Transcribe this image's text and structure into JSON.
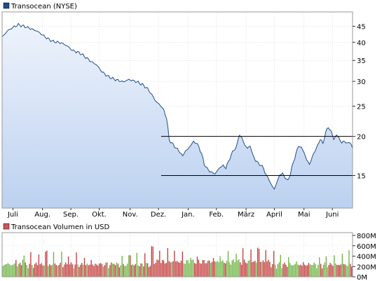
{
  "chart_data": [
    {
      "type": "area",
      "legend": "Transocean (NYSE)",
      "colors": {
        "line": "#1f4e8c",
        "fill_top": "#e6eefb",
        "fill_bottom": "#c2d5f2",
        "legend_box": "#1f4e8c"
      },
      "scale": "log",
      "ylim": [
        11.8,
        50
      ],
      "y_ticks": [
        15,
        20,
        25,
        30,
        35,
        40,
        45
      ],
      "y_tick_labels": [
        "15",
        "20",
        "25",
        "30",
        "35",
        "40",
        "45"
      ],
      "x_tick_labels": [
        "Juli",
        "Aug.",
        "Sep.",
        "Okt.",
        "Nov.",
        "Dez.",
        "Jan.",
        "Feb.",
        "März",
        "April",
        "Mai",
        "Juni"
      ],
      "x_tick_index": [
        8,
        30,
        51,
        72,
        95,
        116,
        138,
        159,
        181,
        202,
        224,
        245
      ],
      "grid": true,
      "reference_lines": [
        {
          "value": 20,
          "from_index": 118,
          "to_index": 260
        },
        {
          "value": 15,
          "from_index": 118,
          "to_index": 260
        }
      ],
      "anchors": [
        [
          0,
          41.5
        ],
        [
          4,
          43.5
        ],
        [
          8,
          44.6
        ],
        [
          12,
          45.5
        ],
        [
          16,
          45.0
        ],
        [
          20,
          44.4
        ],
        [
          26,
          43.4
        ],
        [
          30,
          42.2
        ],
        [
          34,
          41.0
        ],
        [
          38,
          40.2
        ],
        [
          44,
          39.8
        ],
        [
          48,
          39.0
        ],
        [
          52,
          37.7
        ],
        [
          58,
          36.9
        ],
        [
          62,
          35.8
        ],
        [
          66,
          34.7
        ],
        [
          70,
          33.9
        ],
        [
          74,
          32.2
        ],
        [
          78,
          31.2
        ],
        [
          82,
          30.6
        ],
        [
          86,
          30.2
        ],
        [
          90,
          29.9
        ],
        [
          94,
          30.4
        ],
        [
          100,
          29.9
        ],
        [
          104,
          29.3
        ],
        [
          108,
          28.4
        ],
        [
          112,
          26.8
        ],
        [
          114,
          25.9
        ],
        [
          118,
          25.0
        ],
        [
          120,
          24.2
        ],
        [
          122,
          22.9
        ],
        [
          124,
          19.5
        ],
        [
          126,
          19.0
        ],
        [
          128,
          18.6
        ],
        [
          132,
          17.8
        ],
        [
          134,
          17.3
        ],
        [
          136,
          18.0
        ],
        [
          138,
          18.2
        ],
        [
          140,
          18.8
        ],
        [
          142,
          19.2
        ],
        [
          144,
          19.1
        ],
        [
          146,
          18.5
        ],
        [
          148,
          17.6
        ],
        [
          150,
          16.3
        ],
        [
          152,
          15.8
        ],
        [
          154,
          15.5
        ],
        [
          156,
          15.3
        ],
        [
          158,
          15.2
        ],
        [
          160,
          15.6
        ],
        [
          162,
          16.0
        ],
        [
          164,
          16.1
        ],
        [
          166,
          15.9
        ],
        [
          168,
          16.6
        ],
        [
          170,
          17.5
        ],
        [
          172,
          18.1
        ],
        [
          174,
          18.6
        ],
        [
          176,
          20.3
        ],
        [
          178,
          19.7
        ],
        [
          180,
          18.8
        ],
        [
          182,
          18.3
        ],
        [
          184,
          18.7
        ],
        [
          186,
          17.4
        ],
        [
          188,
          16.8
        ],
        [
          190,
          16.4
        ],
        [
          192,
          16.2
        ],
        [
          194,
          15.8
        ],
        [
          196,
          15.0
        ],
        [
          198,
          14.6
        ],
        [
          200,
          13.9
        ],
        [
          202,
          13.6
        ],
        [
          204,
          14.3
        ],
        [
          206,
          15.1
        ],
        [
          208,
          15.2
        ],
        [
          210,
          14.8
        ],
        [
          212,
          14.4
        ],
        [
          214,
          15.3
        ],
        [
          216,
          16.5
        ],
        [
          218,
          17.6
        ],
        [
          220,
          18.7
        ],
        [
          222,
          18.4
        ],
        [
          224,
          17.8
        ],
        [
          226,
          16.8
        ],
        [
          228,
          16.3
        ],
        [
          230,
          17.1
        ],
        [
          232,
          18.0
        ],
        [
          234,
          18.6
        ],
        [
          236,
          19.7
        ],
        [
          238,
          18.9
        ],
        [
          240,
          20.6
        ],
        [
          242,
          21.4
        ],
        [
          244,
          20.8
        ],
        [
          246,
          19.6
        ],
        [
          248,
          20.2
        ],
        [
          250,
          19.8
        ],
        [
          252,
          19.0
        ],
        [
          254,
          19.4
        ],
        [
          256,
          18.9
        ],
        [
          258,
          19.3
        ],
        [
          260,
          18.2
        ]
      ]
    },
    {
      "type": "bar",
      "legend": "Transocean Volumen in USD",
      "colors": {
        "up": "#6cb33f",
        "down": "#c23b3b",
        "legend_box": "#c8585a"
      },
      "ylim": [
        0,
        800
      ],
      "y_ticks": [
        0,
        200,
        400,
        600,
        800
      ],
      "y_tick_labels": [
        "0M",
        "200M",
        "400M",
        "600M",
        "800M"
      ],
      "unit": "M USD",
      "grid": true,
      "count": 261,
      "note_values": "daily volume approximated by pattern"
    }
  ]
}
